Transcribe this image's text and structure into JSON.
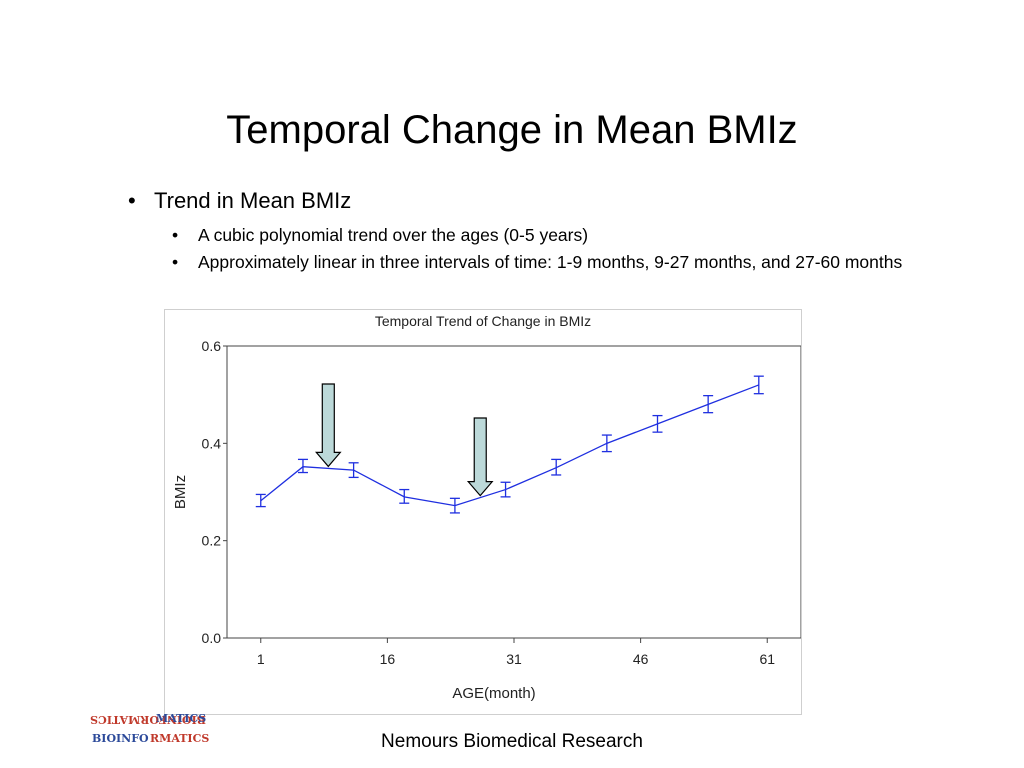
{
  "slide": {
    "title": "Temporal Change in Mean BMIz",
    "bullet1": "Trend in Mean BMIz",
    "sub_bullets": [
      "A cubic polynomial trend over the ages (0-5 years)",
      "Approximately linear in three intervals of time: 1-9 months, 9-27 months, and 27-60 months"
    ],
    "footer": "Nemours Biomedical Research",
    "logo_text": "BIOINFORMATICS"
  },
  "colors": {
    "series": "#1f2fe0",
    "arrow_fill": "#bcd9d9",
    "frame": "#cfcfcf"
  },
  "chart_data": {
    "type": "line",
    "title": "Temporal Trend of Change in BMIz",
    "xlabel": "AGE(month)",
    "ylabel": "BMIz",
    "xlim": [
      -3,
      65
    ],
    "ylim": [
      0,
      0.6
    ],
    "xticks": [
      1,
      16,
      31,
      46,
      61
    ],
    "yticks": [
      "0.0",
      "0.2",
      "0.4",
      "0.6"
    ],
    "grid": false,
    "series": [
      {
        "x": [
          1,
          6,
          12,
          18,
          24,
          30,
          36,
          42,
          48,
          54,
          60
        ],
        "y": [
          0.282,
          0.352,
          0.345,
          0.29,
          0.272,
          0.305,
          0.35,
          0.4,
          0.44,
          0.48,
          0.52
        ],
        "lower": [
          0.27,
          0.34,
          0.33,
          0.277,
          0.257,
          0.29,
          0.335,
          0.383,
          0.423,
          0.463,
          0.502
        ],
        "upper": [
          0.295,
          0.367,
          0.36,
          0.305,
          0.287,
          0.32,
          0.367,
          0.417,
          0.457,
          0.498,
          0.538
        ]
      }
    ],
    "annotations": [
      {
        "type": "down-arrow",
        "x": 9
      },
      {
        "type": "down-arrow",
        "x": 27
      }
    ]
  }
}
